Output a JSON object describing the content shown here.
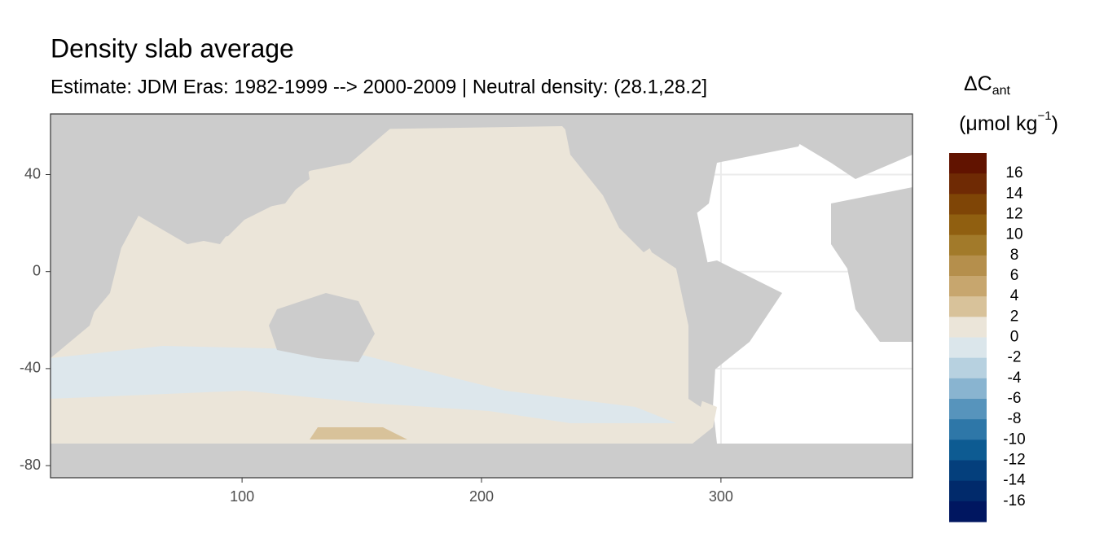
{
  "chart_data": {
    "type": "map",
    "title": "Density slab average",
    "subtitle": "Estimate: JDM Eras: 1982-1999 --> 2000-2009 | Neutral density: (28.1,28.2]",
    "xlim": [
      20,
      380
    ],
    "xticks": [
      100,
      200,
      300
    ],
    "ylim": [
      -85,
      65
    ],
    "yticks": [
      40,
      0,
      -40,
      -80
    ],
    "grid": true,
    "legend": {
      "title": "ΔC",
      "title_sub": "ant",
      "unit": "(μmol kg",
      "unit_sup": "−1",
      "unit_end": ")",
      "limits": [
        -18,
        18
      ],
      "breaks": [
        16,
        14,
        12,
        10,
        8,
        6,
        4,
        2,
        0,
        -2,
        -4,
        -6,
        -8,
        -10,
        -12,
        -14,
        -16
      ],
      "colors": [
        "#611300",
        "#6f2a04",
        "#7f4506",
        "#905f10",
        "#a27a2a",
        "#b58f4c",
        "#c7a66e",
        "#d8c29a",
        "#ebe5d9",
        "#dbe6eb",
        "#b7d1e0",
        "#89b4d0",
        "#5794bc",
        "#2e77a8",
        "#0d5b92",
        "#043f7c",
        "#012a6b",
        "#001660"
      ]
    }
  }
}
